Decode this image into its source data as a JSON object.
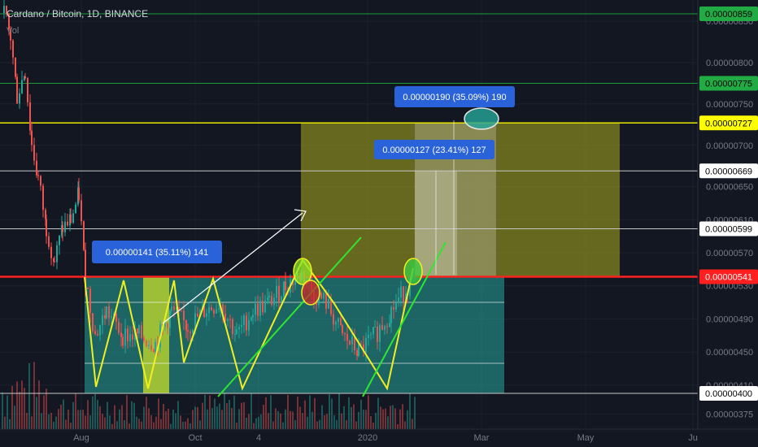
{
  "header": {
    "symbol": "Cardano / Bitcoin, 1D, BINANCE",
    "volume_label": "Vol"
  },
  "chart_data": {
    "type": "candlestick",
    "symbol": "Cardano / Bitcoin",
    "interval": "1D",
    "exchange": "BINANCE",
    "y_ticks": [
      "0.00000850",
      "0.00000800",
      "0.00000750",
      "0.00000700",
      "0.00000650",
      "0.00000610",
      "0.00000570",
      "0.00000530",
      "0.00000490",
      "0.00000450",
      "0.00000410",
      "0.00000375"
    ],
    "x_ticks": [
      "Aug",
      "Oct",
      "4",
      "2020",
      "Mar",
      "May",
      "Ju"
    ],
    "horizontal_levels": [
      {
        "value": "0.00000859",
        "color": "#1e9c3c",
        "label_bg": "#22ab45",
        "label_color": "#000000"
      },
      {
        "value": "0.00000775",
        "color": "#1e9c3c",
        "label_bg": "#22ab45",
        "label_color": "#000000"
      },
      {
        "value": "0.00000727",
        "color": "#e6e600",
        "label_bg": "#ffff00",
        "label_color": "#000000"
      },
      {
        "value": "0.00000669",
        "color": "#c8c8c8",
        "label_bg": "#ffffff",
        "label_color": "#000000"
      },
      {
        "value": "0.00000599",
        "color": "#c8c8c8",
        "label_bg": "#ffffff",
        "label_color": "#000000"
      },
      {
        "value": "0.00000541",
        "color": "#ff2020",
        "label_bg": "#ff1f1f",
        "label_color": "#ffffff"
      },
      {
        "value": "0.00000400",
        "color": "#c8c8c8",
        "label_bg": "#ffffff",
        "label_color": "#000000"
      }
    ],
    "annotations": [
      {
        "text": "0.00000141 (35.11%) 141"
      },
      {
        "text": "0.00000190 (35.09%) 190"
      },
      {
        "text": "0.00000127 (23.41%) 127"
      }
    ]
  },
  "colors": {
    "background": "#131722",
    "bull": "#26a69a",
    "bear": "#ef5350",
    "zone_teal": "#26a69a",
    "zone_yellow": "#8c8c1e",
    "pattern": "#f0f020",
    "trend": "#2ee62e",
    "label_blue": "#2962d9"
  }
}
